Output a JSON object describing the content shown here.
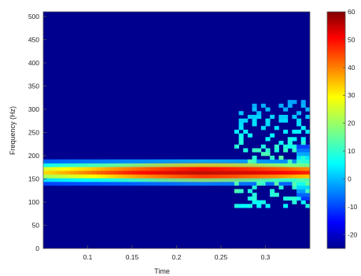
{
  "chart_data": {
    "type": "heatmap",
    "title": "",
    "xlabel": "Time",
    "ylabel": "Frequency (Hz)",
    "xlim": [
      0.05,
      0.35
    ],
    "ylim": [
      0,
      510
    ],
    "x_ticks": [
      "0.1",
      "0.15",
      "0.2",
      "0.25",
      "0.3"
    ],
    "y_ticks": [
      "0",
      "50",
      "100",
      "150",
      "200",
      "250",
      "300",
      "350",
      "400",
      "450",
      "500"
    ],
    "colormap": "jet",
    "background_color": "#00008f",
    "colorbar": {
      "range": [
        -25,
        60
      ],
      "ticks": [
        "60",
        "50",
        "40",
        "30",
        "20",
        "10",
        "0",
        "-10",
        "-20"
      ]
    },
    "band": {
      "center_frequency": 165,
      "bandwidth": 35,
      "start_time": 0.05,
      "end_time": 0.35,
      "peak_time": 0.23,
      "peak_level": 60
    },
    "scatter_region": {
      "start_time": 0.265,
      "frequency_range": [
        90,
        320
      ]
    }
  }
}
